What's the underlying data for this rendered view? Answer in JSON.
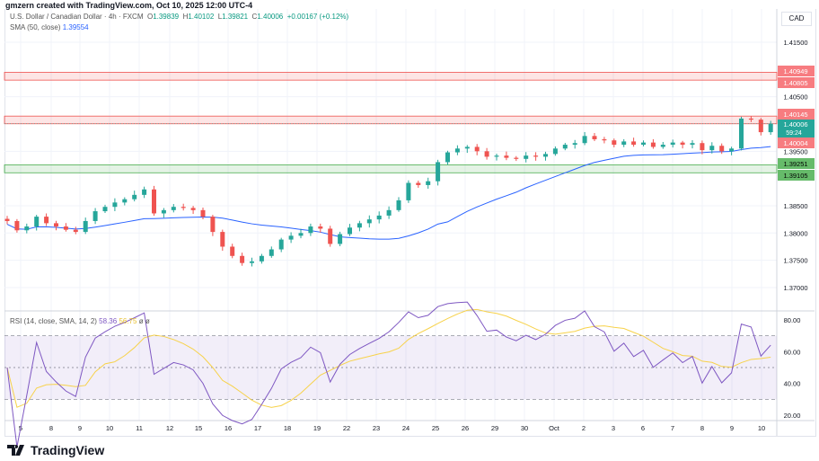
{
  "credit": "gmzern created with TradingView.com, Oct 10, 2025 12:00 UTC-4",
  "header": {
    "symbol": "U.S. Dollar / Canadian Dollar · 4h · FXCM",
    "o_label": "O",
    "o": "1.39839",
    "h_label": "H",
    "h": "1.40102",
    "l_label": "L",
    "l": "1.39821",
    "c_label": "C",
    "c": "1.40006",
    "change": "+0.00167 (+0.12%)"
  },
  "sma": {
    "label": "SMA (50, close)",
    "value": "1.39554"
  },
  "rsi": {
    "label": "RSI (14, close, SMA, 14, 2)",
    "value": "58.36",
    "sma_value": "56.75",
    "extra": "ø ø"
  },
  "currency": "CAD",
  "brand": "TradingView",
  "colors": {
    "up": "#26a69a",
    "down": "#ef5350",
    "sma": "#2962ff",
    "rsi": "#7e57c2",
    "rsi_sma": "#f7d24a"
  },
  "chart_data": {
    "type": "candlestick",
    "price_ticks": [
      "1.41500",
      "1.40500",
      "1.39500",
      "1.38500",
      "1.38000",
      "1.37500",
      "1.37000"
    ],
    "price_tick_values": [
      1.415,
      1.405,
      1.395,
      1.385,
      1.38,
      1.375,
      1.37
    ],
    "rsi_ticks": [
      "80.00",
      "60.00",
      "40.00",
      "20.00"
    ],
    "rsi_tick_values": [
      80,
      60,
      40,
      20
    ],
    "x_labels": [
      "5",
      "8",
      "9",
      "10",
      "11",
      "12",
      "15",
      "16",
      "17",
      "18",
      "19",
      "22",
      "23",
      "24",
      "25",
      "26",
      "29",
      "30",
      "Oct",
      "2",
      "3",
      "6",
      "7",
      "8",
      "9",
      "10"
    ],
    "zones": [
      {
        "type": "resistance",
        "top": "1.40949",
        "bottom": "1.40805",
        "top_v": 1.40949,
        "bottom_v": 1.40805
      },
      {
        "type": "resistance",
        "top": "1.40145",
        "bottom": "1.40004",
        "top_v": 1.40145,
        "bottom_v": 1.40004
      },
      {
        "type": "support",
        "top": "1.39251",
        "bottom": "1.39105",
        "top_v": 1.39251,
        "bottom_v": 1.39105
      }
    ],
    "last_price": "1.40006",
    "countdown": "59:24",
    "closes": [
      1.3822,
      1.3805,
      1.3812,
      1.383,
      1.3818,
      1.3812,
      1.3806,
      1.3802,
      1.3822,
      1.384,
      1.3848,
      1.3856,
      1.3862,
      1.387,
      1.388,
      1.3836,
      1.3842,
      1.3848,
      1.3846,
      1.3842,
      1.383,
      1.3802,
      1.3775,
      1.3758,
      1.3745,
      1.3748,
      1.3758,
      1.377,
      1.3788,
      1.3795,
      1.38,
      1.3812,
      1.3808,
      1.378,
      1.3798,
      1.381,
      1.3818,
      1.3825,
      1.3832,
      1.3842,
      1.386,
      1.3892,
      1.3888,
      1.3895,
      1.393,
      1.3948,
      1.3955,
      1.3958,
      1.395,
      1.394,
      1.3942,
      1.3938,
      1.3936,
      1.3942,
      1.394,
      1.3945,
      1.3955,
      1.3962,
      1.3965,
      1.3978,
      1.3972,
      1.397,
      1.3962,
      1.3968,
      1.3962,
      1.3966,
      1.3958,
      1.3962,
      1.3966,
      1.3962,
      1.3965,
      1.3952,
      1.396,
      1.395,
      1.3955,
      1.401,
      1.4008,
      1.3985,
      1.40006
    ]
  }
}
